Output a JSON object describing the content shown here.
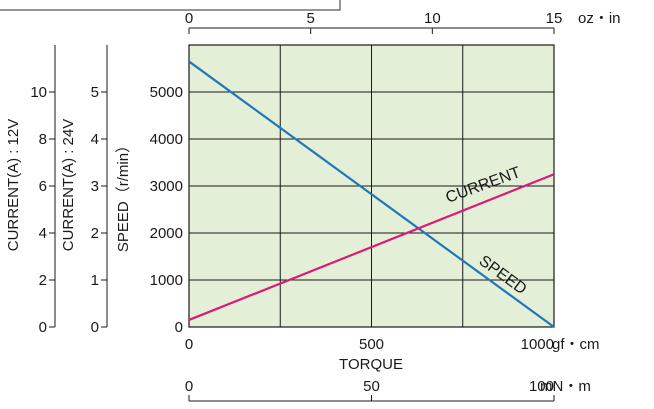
{
  "chart_data": {
    "type": "line",
    "xlabel": "TORQUE",
    "x_units": {
      "bottom": "gf・cm",
      "top": "oz・in",
      "lower": "mN・m"
    },
    "x_ticks": {
      "bottom": [
        "0",
        "500",
        "1000"
      ],
      "top": [
        "0",
        "5",
        "10",
        "15"
      ],
      "lower": [
        "0",
        "50",
        "100"
      ]
    },
    "xlim": [
      0,
      1000
    ],
    "ylabels": {
      "speed": "SPEED（r/min）",
      "current_24v": "CURRENT(A) : 24V",
      "current_12v": "CURRENT(A) : 12V"
    },
    "y_ticks": {
      "speed": [
        "0",
        "1000",
        "2000",
        "3000",
        "4000",
        "5000"
      ],
      "current_24v": [
        "0",
        "1",
        "2",
        "3",
        "4",
        "5"
      ],
      "current_12v": [
        "0",
        "2",
        "4",
        "6",
        "8",
        "10"
      ]
    },
    "ylim": [
      0,
      6000
    ],
    "grid": true,
    "plot_background": "#e3efd6",
    "series": [
      {
        "name": "SPEED",
        "color": "#2277bb",
        "points": [
          {
            "x": 0,
            "y": 5650
          },
          {
            "x": 1000,
            "y": 0
          }
        ]
      },
      {
        "name": "CURRENT",
        "color": "#dd1a78",
        "points": [
          {
            "x": 0,
            "y": 150
          },
          {
            "x": 1000,
            "y": 3250
          }
        ]
      }
    ]
  }
}
